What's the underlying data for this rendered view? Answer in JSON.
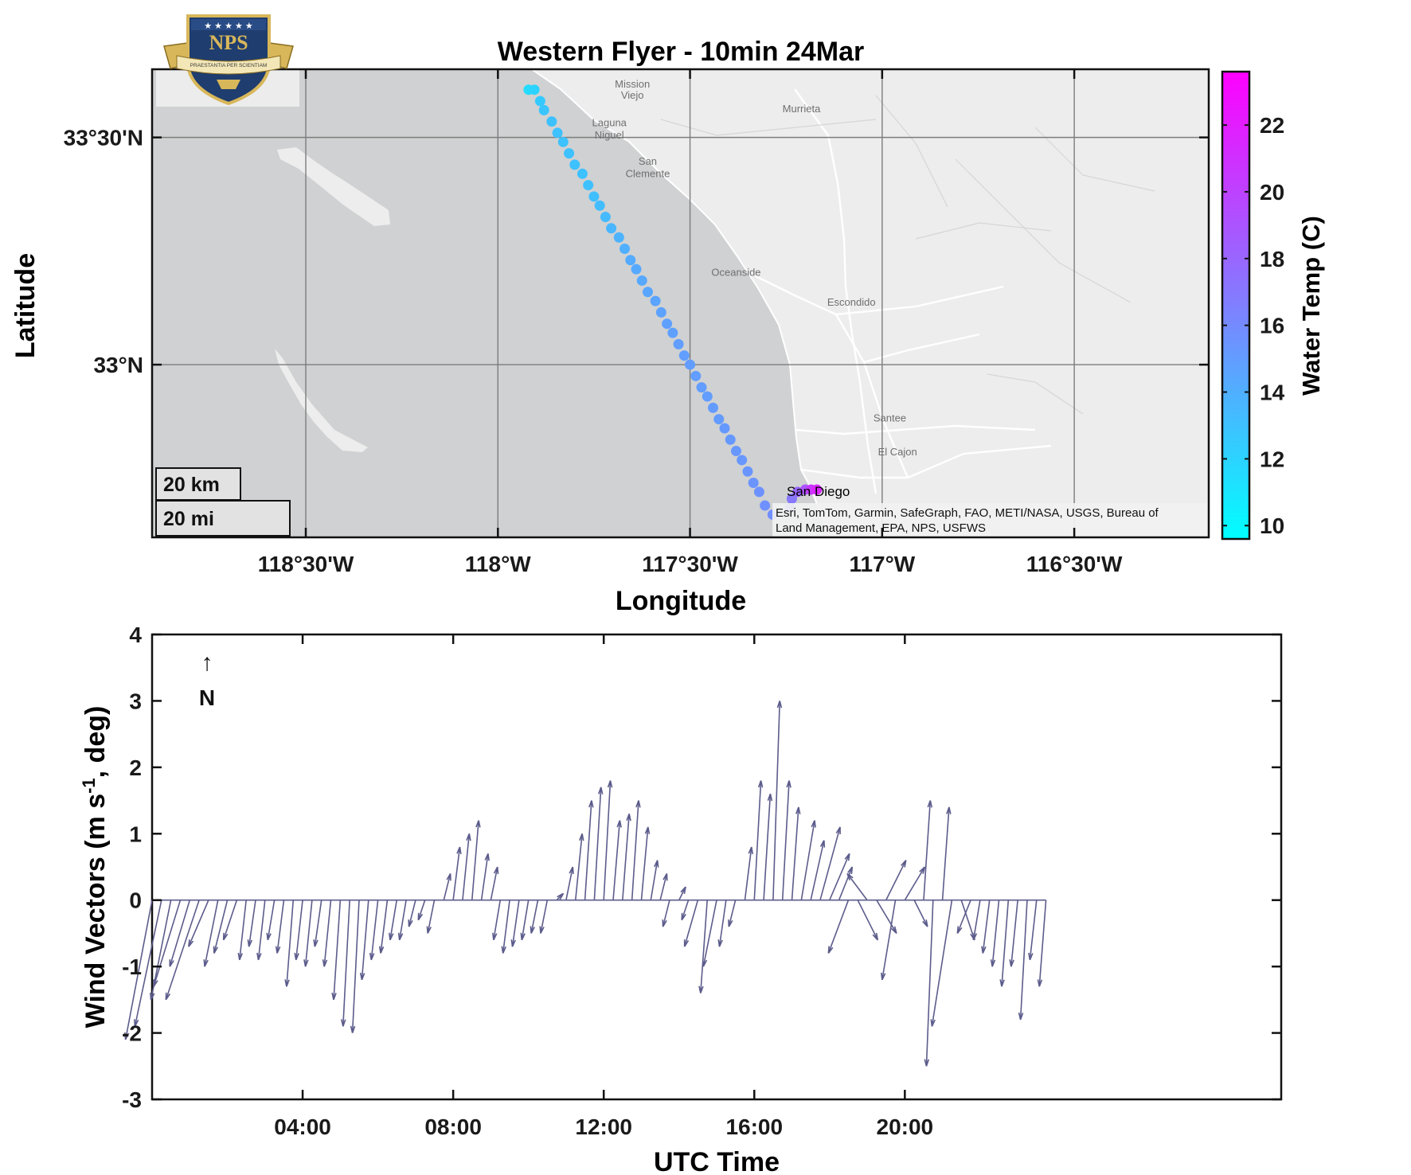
{
  "logo": {
    "text": "NPS",
    "motto": "PRAESTANTIA PER SCIENTIAM",
    "colors": {
      "shield": "#1f3d6e",
      "gold": "#d8b75a",
      "banner": "#f3e7b8"
    }
  },
  "map": {
    "title": "Western Flyer - 10min 24Mar",
    "xlabel": "Longitude",
    "ylabel": "Latitude",
    "lon_range": [
      -118.9,
      -116.15
    ],
    "lat_range": [
      32.62,
      33.65
    ],
    "xticks": [
      {
        "value": -118.5,
        "label": "118°30'W"
      },
      {
        "value": -118.0,
        "label": "118°W"
      },
      {
        "value": -117.5,
        "label": "117°30'W"
      },
      {
        "value": -117.0,
        "label": "117°W"
      },
      {
        "value": -116.5,
        "label": "116°30'W"
      }
    ],
    "yticks": [
      {
        "value": 33.5,
        "label": "33°30'N"
      },
      {
        "value": 33.0,
        "label": "33°N"
      }
    ],
    "grid": true,
    "colors": {
      "ocean": "#cfd1d2",
      "land": "#ededed",
      "grid": "#7c7c7c",
      "road": "#ffffff"
    },
    "places": [
      {
        "name": "Mission",
        "lon": -117.65,
        "lat": 33.61
      },
      {
        "name": "Viejo",
        "lon": -117.65,
        "lat": 33.585
      },
      {
        "name": "Laguna",
        "lon": -117.71,
        "lat": 33.525
      },
      {
        "name": "Niguel",
        "lon": -117.71,
        "lat": 33.498
      },
      {
        "name": "Murrieta",
        "lon": -117.21,
        "lat": 33.555
      },
      {
        "name": "San",
        "lon": -117.61,
        "lat": 33.44
      },
      {
        "name": "Clemente",
        "lon": -117.61,
        "lat": 33.413
      },
      {
        "name": "Oceanside",
        "lon": -117.38,
        "lat": 33.195
      },
      {
        "name": "Escondido",
        "lon": -117.08,
        "lat": 33.13
      },
      {
        "name": "Santee",
        "lon": -116.98,
        "lat": 32.875
      },
      {
        "name": "El Cajon",
        "lon": -116.96,
        "lat": 32.8
      }
    ],
    "city_label": {
      "name": "San Diego",
      "lon": -117.16,
      "lat": 32.72
    },
    "scalebar": {
      "km_label": "20 km",
      "mi_label": "20 mi"
    },
    "attribution": [
      "Esri, TomTom, Garmin, SafeGraph, FAO, METI/NASA, USGS, Bureau of",
      "Land Management, EPA, NPS, USFWS"
    ]
  },
  "colorbar": {
    "label": "Water Temp (C)",
    "range": [
      9.6,
      23.6
    ],
    "ticks": [
      10,
      12,
      14,
      16,
      18,
      20,
      22
    ],
    "colormap": "cool"
  },
  "wind": {
    "xlabel": "UTC Time",
    "ylabel": "Wind Vectors (m s-1, deg)",
    "xlim_hours": [
      0,
      30
    ],
    "ylim": [
      -3,
      4
    ],
    "yticks": [
      -3,
      -2,
      -1,
      0,
      1,
      2,
      3,
      4
    ],
    "xticks": [
      {
        "hours": 4,
        "label": "04:00"
      },
      {
        "hours": 8,
        "label": "08:00"
      },
      {
        "hours": 12,
        "label": "12:00"
      },
      {
        "hours": 16,
        "label": "16:00"
      },
      {
        "hours": 20,
        "label": "20:00"
      }
    ],
    "north_arrow": {
      "glyph": "↑",
      "label": "N"
    },
    "color": "#5c5c8c"
  },
  "chart_data": [
    {
      "type": "scatter",
      "title": "Western Flyer - 10min 24Mar",
      "xlabel": "Longitude",
      "ylabel": "Latitude",
      "color_label": "Water Temp (C)",
      "points": [
        {
          "lon": -117.92,
          "lat": 33.605,
          "temp": 11.5
        },
        {
          "lon": -117.905,
          "lat": 33.605,
          "temp": 12.0
        },
        {
          "lon": -117.89,
          "lat": 33.58,
          "temp": 12.5
        },
        {
          "lon": -117.88,
          "lat": 33.56,
          "temp": 12.8
        },
        {
          "lon": -117.86,
          "lat": 33.535,
          "temp": 13.0
        },
        {
          "lon": -117.845,
          "lat": 33.51,
          "temp": 13.0
        },
        {
          "lon": -117.83,
          "lat": 33.49,
          "temp": 13.0
        },
        {
          "lon": -117.815,
          "lat": 33.465,
          "temp": 13.0
        },
        {
          "lon": -117.8,
          "lat": 33.44,
          "temp": 13.0
        },
        {
          "lon": -117.78,
          "lat": 33.42,
          "temp": 13.0
        },
        {
          "lon": -117.765,
          "lat": 33.395,
          "temp": 13.0
        },
        {
          "lon": -117.75,
          "lat": 33.37,
          "temp": 13.1
        },
        {
          "lon": -117.735,
          "lat": 33.35,
          "temp": 13.2
        },
        {
          "lon": -117.72,
          "lat": 33.325,
          "temp": 13.4
        },
        {
          "lon": -117.705,
          "lat": 33.3,
          "temp": 13.6
        },
        {
          "lon": -117.685,
          "lat": 33.28,
          "temp": 13.8
        },
        {
          "lon": -117.67,
          "lat": 33.255,
          "temp": 14.0
        },
        {
          "lon": -117.655,
          "lat": 33.23,
          "temp": 14.2
        },
        {
          "lon": -117.64,
          "lat": 33.21,
          "temp": 14.3
        },
        {
          "lon": -117.625,
          "lat": 33.185,
          "temp": 14.4
        },
        {
          "lon": -117.61,
          "lat": 33.16,
          "temp": 14.5
        },
        {
          "lon": -117.59,
          "lat": 33.14,
          "temp": 14.6
        },
        {
          "lon": -117.575,
          "lat": 33.115,
          "temp": 14.7
        },
        {
          "lon": -117.56,
          "lat": 33.09,
          "temp": 14.8
        },
        {
          "lon": -117.545,
          "lat": 33.07,
          "temp": 14.8
        },
        {
          "lon": -117.53,
          "lat": 33.045,
          "temp": 14.9
        },
        {
          "lon": -117.515,
          "lat": 33.02,
          "temp": 14.9
        },
        {
          "lon": -117.5,
          "lat": 33.0,
          "temp": 15.0
        },
        {
          "lon": -117.485,
          "lat": 32.975,
          "temp": 15.0
        },
        {
          "lon": -117.47,
          "lat": 32.95,
          "temp": 15.0
        },
        {
          "lon": -117.455,
          "lat": 32.93,
          "temp": 15.0
        },
        {
          "lon": -117.44,
          "lat": 32.905,
          "temp": 15.1
        },
        {
          "lon": -117.425,
          "lat": 32.88,
          "temp": 15.1
        },
        {
          "lon": -117.41,
          "lat": 32.86,
          "temp": 15.2
        },
        {
          "lon": -117.395,
          "lat": 32.835,
          "temp": 15.2
        },
        {
          "lon": -117.38,
          "lat": 32.81,
          "temp": 15.3
        },
        {
          "lon": -117.365,
          "lat": 32.79,
          "temp": 15.3
        },
        {
          "lon": -117.35,
          "lat": 32.765,
          "temp": 15.4
        },
        {
          "lon": -117.335,
          "lat": 32.74,
          "temp": 15.5
        },
        {
          "lon": -117.32,
          "lat": 32.72,
          "temp": 15.6
        },
        {
          "lon": -117.305,
          "lat": 32.69,
          "temp": 15.7
        },
        {
          "lon": -117.285,
          "lat": 32.67,
          "temp": 15.8
        },
        {
          "lon": -117.24,
          "lat": 32.685,
          "temp": 16.5
        },
        {
          "lon": -117.235,
          "lat": 32.705,
          "temp": 17.0
        },
        {
          "lon": -117.22,
          "lat": 32.72,
          "temp": 18.0
        },
        {
          "lon": -117.2,
          "lat": 32.725,
          "temp": 19.0
        },
        {
          "lon": -117.185,
          "lat": 32.725,
          "temp": 20.5
        },
        {
          "lon": -117.17,
          "lat": 32.725,
          "temp": 21.5
        }
      ]
    },
    {
      "type": "quiver",
      "xlabel": "UTC Time",
      "ylabel": "Wind Vectors (m s-1, deg)",
      "ylim": [
        -3,
        4
      ],
      "description_units": "hours UTC since 00:00; u (east) and v (north) in m/s",
      "vectors": [
        {
          "t": 0.0,
          "u": -0.4,
          "v": -2.1
        },
        {
          "t": 0.25,
          "u": -0.4,
          "v": -1.9
        },
        {
          "t": 0.5,
          "u": -0.3,
          "v": -1.5
        },
        {
          "t": 0.75,
          "u": -0.4,
          "v": -1.3
        },
        {
          "t": 1.0,
          "u": -0.3,
          "v": -1.0
        },
        {
          "t": 1.25,
          "u": -0.5,
          "v": -1.5
        },
        {
          "t": 1.5,
          "u": -0.3,
          "v": -0.7
        },
        {
          "t": 1.75,
          "u": -0.2,
          "v": -1.0
        },
        {
          "t": 2.0,
          "u": -0.2,
          "v": -0.8
        },
        {
          "t": 2.25,
          "u": -0.2,
          "v": -0.6
        },
        {
          "t": 2.5,
          "u": -0.1,
          "v": -0.9
        },
        {
          "t": 2.75,
          "u": -0.1,
          "v": -0.7
        },
        {
          "t": 3.0,
          "u": -0.1,
          "v": -0.9
        },
        {
          "t": 3.25,
          "u": -0.1,
          "v": -0.6
        },
        {
          "t": 3.5,
          "u": -0.1,
          "v": -0.8
        },
        {
          "t": 3.75,
          "u": -0.1,
          "v": -1.3
        },
        {
          "t": 4.0,
          "u": -0.1,
          "v": -0.9
        },
        {
          "t": 4.25,
          "u": -0.1,
          "v": -1.0
        },
        {
          "t": 4.5,
          "u": -0.1,
          "v": -0.7
        },
        {
          "t": 4.75,
          "u": -0.1,
          "v": -1.0
        },
        {
          "t": 5.0,
          "u": -0.1,
          "v": -1.5
        },
        {
          "t": 5.25,
          "u": -0.1,
          "v": -1.9
        },
        {
          "t": 5.5,
          "u": -0.1,
          "v": -2.0
        },
        {
          "t": 5.75,
          "u": -0.1,
          "v": -1.2
        },
        {
          "t": 6.0,
          "u": -0.1,
          "v": -0.9
        },
        {
          "t": 6.25,
          "u": -0.1,
          "v": -0.8
        },
        {
          "t": 6.5,
          "u": -0.1,
          "v": -0.6
        },
        {
          "t": 6.75,
          "u": -0.1,
          "v": -0.6
        },
        {
          "t": 7.0,
          "u": -0.1,
          "v": -0.4
        },
        {
          "t": 7.25,
          "u": -0.1,
          "v": -0.3
        },
        {
          "t": 7.5,
          "u": -0.1,
          "v": -0.5
        },
        {
          "t": 7.75,
          "u": 0.1,
          "v": 0.4
        },
        {
          "t": 8.0,
          "u": 0.1,
          "v": 0.8
        },
        {
          "t": 8.25,
          "u": 0.1,
          "v": 1.0
        },
        {
          "t": 8.5,
          "u": 0.1,
          "v": 1.2
        },
        {
          "t": 8.75,
          "u": 0.1,
          "v": 0.7
        },
        {
          "t": 9.0,
          "u": 0.1,
          "v": 0.5
        },
        {
          "t": 9.25,
          "u": -0.1,
          "v": -0.6
        },
        {
          "t": 9.5,
          "u": -0.1,
          "v": -0.8
        },
        {
          "t": 9.75,
          "u": -0.1,
          "v": -0.7
        },
        {
          "t": 10.0,
          "u": -0.1,
          "v": -0.6
        },
        {
          "t": 10.25,
          "u": -0.1,
          "v": -0.5
        },
        {
          "t": 10.5,
          "u": -0.1,
          "v": -0.5
        },
        {
          "t": 10.75,
          "u": 0.1,
          "v": 0.1
        },
        {
          "t": 11.0,
          "u": 0.1,
          "v": 0.5
        },
        {
          "t": 11.25,
          "u": 0.1,
          "v": 1.0
        },
        {
          "t": 11.5,
          "u": 0.1,
          "v": 1.5
        },
        {
          "t": 11.75,
          "u": 0.1,
          "v": 1.7
        },
        {
          "t": 12.0,
          "u": 0.1,
          "v": 1.8
        },
        {
          "t": 12.25,
          "u": 0.1,
          "v": 1.2
        },
        {
          "t": 12.5,
          "u": 0.1,
          "v": 1.3
        },
        {
          "t": 12.75,
          "u": 0.1,
          "v": 1.5
        },
        {
          "t": 13.0,
          "u": 0.1,
          "v": 1.1
        },
        {
          "t": 13.25,
          "u": 0.1,
          "v": 0.6
        },
        {
          "t": 13.5,
          "u": 0.1,
          "v": 0.4
        },
        {
          "t": 13.75,
          "u": -0.1,
          "v": -0.4
        },
        {
          "t": 14.0,
          "u": 0.1,
          "v": 0.2
        },
        {
          "t": 14.25,
          "u": -0.1,
          "v": -0.3
        },
        {
          "t": 14.5,
          "u": -0.2,
          "v": -0.7
        },
        {
          "t": 14.75,
          "u": -0.1,
          "v": -1.4
        },
        {
          "t": 15.0,
          "u": -0.2,
          "v": -1.0
        },
        {
          "t": 15.25,
          "u": -0.1,
          "v": -0.7
        },
        {
          "t": 15.5,
          "u": -0.1,
          "v": -0.4
        },
        {
          "t": 15.75,
          "u": 0.1,
          "v": 0.8
        },
        {
          "t": 16.0,
          "u": 0.1,
          "v": 1.8
        },
        {
          "t": 16.25,
          "u": 0.1,
          "v": 1.6
        },
        {
          "t": 16.5,
          "u": 0.1,
          "v": 3.0
        },
        {
          "t": 16.75,
          "u": 0.1,
          "v": 1.8
        },
        {
          "t": 17.0,
          "u": 0.1,
          "v": 1.4
        },
        {
          "t": 17.25,
          "u": 0.2,
          "v": 1.2
        },
        {
          "t": 17.5,
          "u": 0.2,
          "v": 0.9
        },
        {
          "t": 17.75,
          "u": 0.3,
          "v": 1.1
        },
        {
          "t": 18.0,
          "u": 0.3,
          "v": 0.7
        },
        {
          "t": 18.25,
          "u": 0.2,
          "v": 0.5
        },
        {
          "t": 18.5,
          "u": -0.3,
          "v": -0.8
        },
        {
          "t": 18.75,
          "u": 0.3,
          "v": -0.6
        },
        {
          "t": 19.0,
          "u": -0.3,
          "v": 0.4
        },
        {
          "t": 19.25,
          "u": 0.3,
          "v": -0.5
        },
        {
          "t": 19.5,
          "u": 0.3,
          "v": 0.6
        },
        {
          "t": 19.75,
          "u": -0.2,
          "v": -1.2
        },
        {
          "t": 20.0,
          "u": 0.3,
          "v": 0.5
        },
        {
          "t": 20.25,
          "u": 0.2,
          "v": -0.4
        },
        {
          "t": 20.5,
          "u": 0.1,
          "v": 1.5
        },
        {
          "t": 20.75,
          "u": -0.1,
          "v": -2.5
        },
        {
          "t": 21.0,
          "u": 0.1,
          "v": 1.4
        },
        {
          "t": 21.25,
          "u": -0.3,
          "v": -1.9
        },
        {
          "t": 21.5,
          "u": 0.2,
          "v": -0.6
        },
        {
          "t": 21.75,
          "u": -0.2,
          "v": -0.5
        },
        {
          "t": 22.0,
          "u": -0.1,
          "v": -0.6
        },
        {
          "t": 22.25,
          "u": -0.1,
          "v": -0.8
        },
        {
          "t": 22.5,
          "u": -0.1,
          "v": -1.0
        },
        {
          "t": 22.75,
          "u": -0.1,
          "v": -1.3
        },
        {
          "t": 23.0,
          "u": -0.1,
          "v": -1.0
        },
        {
          "t": 23.25,
          "u": -0.1,
          "v": -1.8
        },
        {
          "t": 23.5,
          "u": -0.1,
          "v": -0.9
        },
        {
          "t": 23.75,
          "u": -0.1,
          "v": -1.3
        }
      ]
    }
  ]
}
